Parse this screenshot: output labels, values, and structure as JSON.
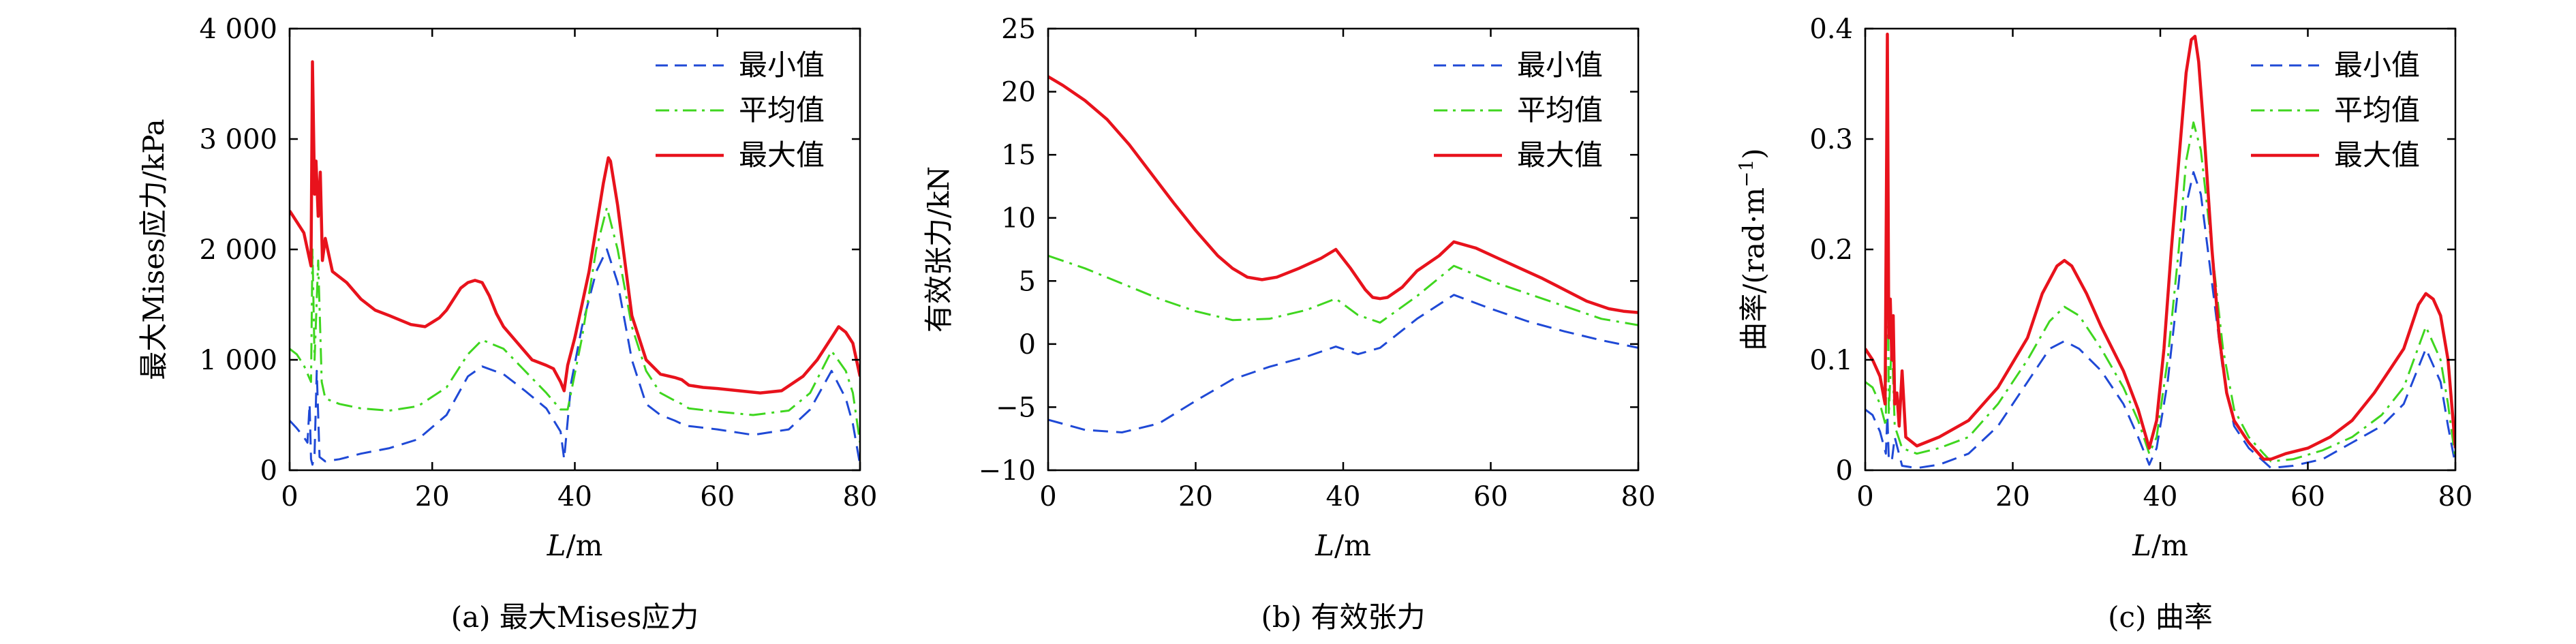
{
  "colors": {
    "min": "#1f49d6",
    "avg": "#3fd61f",
    "max": "#e8121c",
    "axis": "#000000"
  },
  "chart_data": [
    {
      "type": "line",
      "caption": "(a) 最大Mises应力",
      "xlabel_italic": "L",
      "xlabel_unit": "/m",
      "ylabel": "最大Mises应力/kPa",
      "xlim": [
        0,
        80
      ],
      "ylim": [
        0,
        4000
      ],
      "xticks": [
        0,
        20,
        40,
        60,
        80
      ],
      "xtick_labels": [
        "0",
        "20",
        "40",
        "60",
        "80"
      ],
      "yticks": [
        0,
        1000,
        2000,
        3000,
        4000
      ],
      "ytick_labels": [
        "0",
        "1 000",
        "2 000",
        "3 000",
        "4 000"
      ],
      "legend": [
        "最小值",
        "平均值",
        "最大值"
      ],
      "series": [
        {
          "name": "最小值",
          "style": "dashed",
          "color": "#1f49d6",
          "x": [
            0,
            1,
            2,
            2.5,
            2.8,
            3,
            3.2,
            3.5,
            3.8,
            4.2,
            5,
            7,
            10,
            14,
            18,
            22,
            25,
            27,
            30,
            33,
            36,
            38,
            38.5,
            39.5,
            41,
            43,
            44.5,
            46,
            48,
            50,
            52,
            54,
            55,
            56,
            60,
            65,
            70,
            73,
            76,
            78,
            79,
            80
          ],
          "y": [
            450,
            380,
            300,
            250,
            600,
            100,
            50,
            150,
            900,
            120,
            80,
            100,
            150,
            200,
            280,
            500,
            850,
            940,
            870,
            720,
            560,
            350,
            100,
            800,
            1300,
            1800,
            2000,
            1700,
            1000,
            600,
            500,
            450,
            420,
            400,
            370,
            320,
            370,
            550,
            900,
            650,
            420,
            50
          ]
        },
        {
          "name": "平均值",
          "style": "dashdot",
          "color": "#3fd61f",
          "x": [
            0,
            1,
            2,
            3,
            3.2,
            3.5,
            4,
            4.5,
            5,
            7,
            10,
            14,
            18,
            22,
            25,
            27,
            30,
            33,
            36,
            38,
            39,
            41,
            43,
            44.5,
            46,
            48,
            50,
            52,
            54,
            55,
            56,
            60,
            65,
            70,
            73,
            76,
            78,
            79,
            80
          ],
          "y": [
            1100,
            1050,
            950,
            800,
            2000,
            1000,
            1900,
            800,
            650,
            600,
            560,
            540,
            580,
            750,
            1050,
            1180,
            1100,
            900,
            700,
            550,
            550,
            1200,
            2000,
            2380,
            2000,
            1300,
            900,
            700,
            630,
            600,
            560,
            530,
            500,
            540,
            700,
            1080,
            900,
            700,
            250
          ]
        },
        {
          "name": "最大值",
          "style": "solid",
          "color": "#e8121c",
          "x": [
            0,
            1,
            2,
            3,
            3.2,
            3.5,
            3.7,
            4,
            4.3,
            4.6,
            5,
            6,
            8,
            10,
            12,
            14,
            17,
            19,
            21,
            22,
            24,
            25,
            26,
            27,
            28,
            29,
            30,
            32,
            34,
            36,
            37,
            38,
            38.5,
            39,
            40,
            41,
            42,
            43,
            44,
            44.7,
            45,
            46,
            47,
            48,
            50,
            52,
            54,
            55,
            56,
            58,
            60,
            63,
            66,
            69,
            72,
            74,
            76,
            77,
            78,
            79,
            80
          ],
          "y": [
            2350,
            2250,
            2150,
            1850,
            3700,
            2500,
            2800,
            2300,
            2700,
            1900,
            2100,
            1800,
            1700,
            1550,
            1450,
            1400,
            1320,
            1300,
            1380,
            1450,
            1650,
            1700,
            1720,
            1700,
            1580,
            1420,
            1300,
            1150,
            1000,
            950,
            920,
            800,
            720,
            950,
            1200,
            1500,
            1800,
            2200,
            2600,
            2830,
            2800,
            2400,
            1900,
            1400,
            1000,
            870,
            840,
            820,
            770,
            750,
            740,
            720,
            700,
            720,
            850,
            1000,
            1200,
            1300,
            1250,
            1150,
            850
          ]
        }
      ]
    },
    {
      "type": "line",
      "caption": "(b) 有效张力",
      "xlabel_italic": "L",
      "xlabel_unit": "/m",
      "ylabel": "有效张力/kN",
      "xlim": [
        0,
        80
      ],
      "ylim": [
        -10,
        25
      ],
      "xticks": [
        0,
        20,
        40,
        60,
        80
      ],
      "xtick_labels": [
        "0",
        "20",
        "40",
        "60",
        "80"
      ],
      "yticks": [
        -10,
        -5,
        0,
        5,
        10,
        15,
        20,
        25
      ],
      "ytick_labels": [
        "−10",
        "−5",
        "0",
        "5",
        "10",
        "15",
        "20",
        "25"
      ],
      "legend": [
        "最小值",
        "平均值",
        "最大值"
      ],
      "series": [
        {
          "name": "最小值",
          "style": "dashed",
          "color": "#1f49d6",
          "x": [
            0,
            5,
            10,
            15,
            20,
            25,
            30,
            35,
            39,
            42,
            45,
            50,
            55,
            60,
            65,
            70,
            75,
            80
          ],
          "y": [
            -6,
            -6.8,
            -7,
            -6.3,
            -4.5,
            -2.8,
            -1.8,
            -1,
            -0.2,
            -0.8,
            -0.3,
            2,
            3.9,
            2.8,
            1.8,
            1,
            0.3,
            -0.3
          ]
        },
        {
          "name": "平均值",
          "style": "dashdot",
          "color": "#3fd61f",
          "x": [
            0,
            5,
            10,
            15,
            20,
            25,
            30,
            35,
            39,
            42,
            45,
            50,
            55,
            60,
            65,
            70,
            75,
            80
          ],
          "y": [
            7,
            6,
            4.8,
            3.6,
            2.6,
            1.9,
            2,
            2.7,
            3.6,
            2.3,
            1.7,
            3.8,
            6.2,
            5,
            4,
            3,
            2,
            1.5
          ]
        },
        {
          "name": "最大值",
          "style": "solid",
          "color": "#e8121c",
          "x": [
            0,
            2,
            5,
            8,
            11,
            14,
            17,
            20,
            23,
            25,
            27,
            29,
            31,
            34,
            37,
            39,
            41,
            43,
            44,
            45,
            46,
            48,
            50,
            53,
            55,
            58,
            61,
            64,
            67,
            70,
            73,
            76,
            78,
            80
          ],
          "y": [
            21.2,
            20.5,
            19.3,
            17.8,
            15.8,
            13.5,
            11.2,
            9,
            7,
            6,
            5.3,
            5.1,
            5.3,
            6,
            6.8,
            7.5,
            6,
            4.3,
            3.7,
            3.6,
            3.7,
            4.5,
            5.8,
            7,
            8.1,
            7.6,
            6.8,
            6,
            5.2,
            4.3,
            3.4,
            2.8,
            2.6,
            2.5
          ]
        }
      ]
    },
    {
      "type": "line",
      "caption": "(c) 曲率",
      "xlabel_italic": "L",
      "xlabel_unit": "/m",
      "ylabel": "曲率/(rad·m",
      "ylabel_sup": "−1",
      "ylabel_tail": ")",
      "xlim": [
        0,
        80
      ],
      "ylim": [
        0,
        0.4
      ],
      "xticks": [
        0,
        20,
        40,
        60,
        80
      ],
      "xtick_labels": [
        "0",
        "20",
        "40",
        "60",
        "80"
      ],
      "yticks": [
        0,
        0.1,
        0.2,
        0.3,
        0.4
      ],
      "ytick_labels": [
        "0",
        "0.1",
        "0.2",
        "0.3",
        "0.4"
      ],
      "legend": [
        "最小值",
        "平均值",
        "最大值"
      ],
      "series": [
        {
          "name": "最小值",
          "style": "dashed",
          "color": "#1f49d6",
          "x": [
            0,
            1,
            2,
            2.8,
            3,
            3.2,
            3.6,
            4,
            5,
            7,
            10,
            14,
            18,
            22,
            25,
            27,
            29,
            32,
            35,
            37,
            38.5,
            39.5,
            41,
            42.5,
            43.5,
            44.5,
            45.5,
            47,
            48.5,
            50,
            52,
            54,
            55,
            58,
            62,
            66,
            70,
            73,
            76,
            78,
            79,
            80
          ],
          "y": [
            0.055,
            0.05,
            0.035,
            0.015,
            0.05,
            0.01,
            0.008,
            0.03,
            0.004,
            0.002,
            0.005,
            0.015,
            0.04,
            0.08,
            0.11,
            0.117,
            0.11,
            0.09,
            0.06,
            0.03,
            0.005,
            0.02,
            0.08,
            0.17,
            0.24,
            0.27,
            0.25,
            0.17,
            0.09,
            0.04,
            0.02,
            0.008,
            0.002,
            0.004,
            0.01,
            0.025,
            0.04,
            0.06,
            0.11,
            0.08,
            0.04,
            0.005
          ]
        },
        {
          "name": "平均值",
          "style": "dashdot",
          "color": "#3fd61f",
          "x": [
            0,
            1,
            2,
            2.8,
            3,
            3.2,
            3.6,
            4,
            5,
            7,
            10,
            14,
            18,
            22,
            25,
            27,
            29,
            32,
            35,
            37,
            38.5,
            39.5,
            41,
            42.5,
            43.5,
            44.5,
            45.5,
            47,
            48.5,
            50,
            52,
            54,
            55,
            58,
            62,
            66,
            70,
            73,
            76,
            78,
            79,
            80
          ],
          "y": [
            0.08,
            0.075,
            0.06,
            0.04,
            0.3,
            0.05,
            0.12,
            0.04,
            0.02,
            0.015,
            0.02,
            0.03,
            0.06,
            0.1,
            0.135,
            0.148,
            0.14,
            0.11,
            0.075,
            0.045,
            0.015,
            0.03,
            0.1,
            0.2,
            0.28,
            0.315,
            0.29,
            0.2,
            0.11,
            0.055,
            0.03,
            0.015,
            0.008,
            0.01,
            0.018,
            0.03,
            0.05,
            0.075,
            0.13,
            0.1,
            0.06,
            0.01
          ]
        },
        {
          "name": "最大值",
          "style": "solid",
          "color": "#e8121c",
          "x": [
            0,
            1,
            2,
            2.7,
            3,
            3.2,
            3.4,
            3.6,
            3.8,
            4,
            4.3,
            4.6,
            5,
            5.5,
            7,
            10,
            14,
            18,
            22,
            24,
            26,
            27,
            28,
            30,
            32,
            35,
            37,
            38.5,
            39.5,
            40.5,
            41.5,
            42.5,
            43.5,
            44.2,
            44.7,
            45.2,
            46,
            47,
            48,
            49,
            50,
            52,
            54,
            55,
            57,
            60,
            63,
            66,
            69,
            71,
            73,
            74,
            75,
            76,
            77,
            78,
            79,
            80
          ],
          "y": [
            0.11,
            0.1,
            0.085,
            0.06,
            0.395,
            0.12,
            0.155,
            0.1,
            0.14,
            0.06,
            0.07,
            0.04,
            0.09,
            0.03,
            0.022,
            0.03,
            0.045,
            0.075,
            0.12,
            0.16,
            0.185,
            0.19,
            0.185,
            0.16,
            0.13,
            0.09,
            0.055,
            0.02,
            0.045,
            0.11,
            0.2,
            0.28,
            0.36,
            0.39,
            0.393,
            0.37,
            0.3,
            0.2,
            0.12,
            0.07,
            0.045,
            0.025,
            0.01,
            0.01,
            0.015,
            0.02,
            0.03,
            0.045,
            0.07,
            0.09,
            0.11,
            0.13,
            0.15,
            0.16,
            0.155,
            0.14,
            0.1,
            0.02
          ]
        }
      ]
    }
  ]
}
